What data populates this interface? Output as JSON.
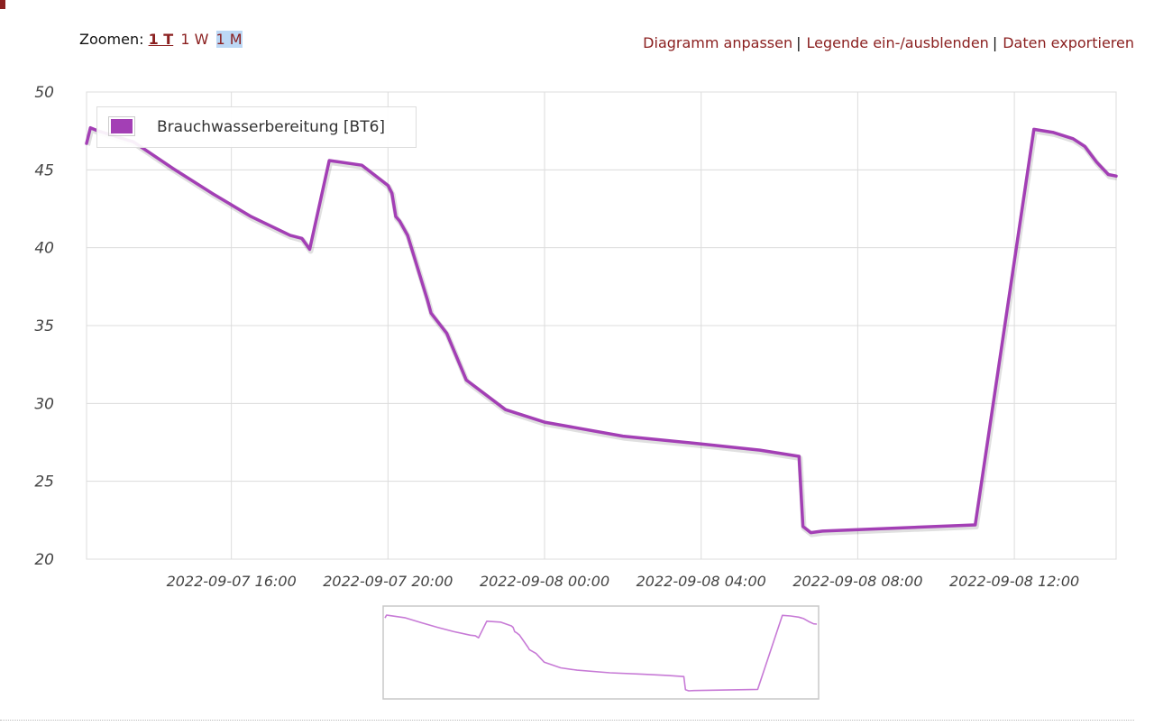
{
  "toolbar": {
    "zoom_label": "Zoomen:",
    "zoom_options": [
      "1 T",
      "1 W",
      "1 M"
    ],
    "actions": [
      "Diagramm anpassen",
      "Legende ein-/ausblenden",
      "Daten exportieren"
    ],
    "separator": "|"
  },
  "colors": {
    "accent": "#8b2020",
    "series": "#a33fb5",
    "navigator_line": "#c77ad6",
    "grid": "#dcdcdc"
  },
  "chart_data": {
    "type": "line",
    "title": "",
    "xlabel": "",
    "ylabel": "",
    "ylim": [
      20,
      50
    ],
    "yticks": [
      20,
      25,
      30,
      35,
      40,
      45,
      50
    ],
    "xlim": [
      "2022-09-07 12:18",
      "2022-09-08 14:36"
    ],
    "xticks": [
      "2022-09-07 16:00",
      "2022-09-07 20:00",
      "2022-09-08 00:00",
      "2022-09-08 04:00",
      "2022-09-08 08:00",
      "2022-09-08 12:00"
    ],
    "grid": true,
    "legend": {
      "placement": "top-left",
      "entries": [
        "Brauchwasserbereitung [BT6]"
      ]
    },
    "series": [
      {
        "name": "Brauchwasserbereitung [BT6]",
        "x": [
          "2022-09-07 12:18",
          "2022-09-07 12:24",
          "2022-09-07 12:36",
          "2022-09-07 13:30",
          "2022-09-07 14:30",
          "2022-09-07 15:30",
          "2022-09-07 16:30",
          "2022-09-07 17:30",
          "2022-09-07 17:48",
          "2022-09-07 18:00",
          "2022-09-07 18:30",
          "2022-09-07 19:20",
          "2022-09-07 20:00",
          "2022-09-07 20:06",
          "2022-09-07 20:12",
          "2022-09-07 20:18",
          "2022-09-07 20:30",
          "2022-09-07 21:00",
          "2022-09-07 21:06",
          "2022-09-07 21:30",
          "2022-09-07 22:00",
          "2022-09-07 23:00",
          "2022-09-08 00:00",
          "2022-09-08 02:00",
          "2022-09-08 04:00",
          "2022-09-08 05:30",
          "2022-09-08 06:30",
          "2022-09-08 06:36",
          "2022-09-08 06:48",
          "2022-09-08 07:06",
          "2022-09-08 11:00",
          "2022-09-08 12:30",
          "2022-09-08 13:00",
          "2022-09-08 13:30",
          "2022-09-08 13:48",
          "2022-09-08 14:06",
          "2022-09-08 14:24",
          "2022-09-08 14:36"
        ],
        "values": [
          46.7,
          47.7,
          47.5,
          46.8,
          45.1,
          43.5,
          42.0,
          40.8,
          40.6,
          39.9,
          45.6,
          45.3,
          44.0,
          43.5,
          42.0,
          41.7,
          40.8,
          36.7,
          35.8,
          34.5,
          31.5,
          29.6,
          28.8,
          27.9,
          27.4,
          27.0,
          26.6,
          22.1,
          21.7,
          21.8,
          22.2,
          47.6,
          47.4,
          47.0,
          46.5,
          45.5,
          44.7,
          44.6
        ]
      }
    ]
  }
}
